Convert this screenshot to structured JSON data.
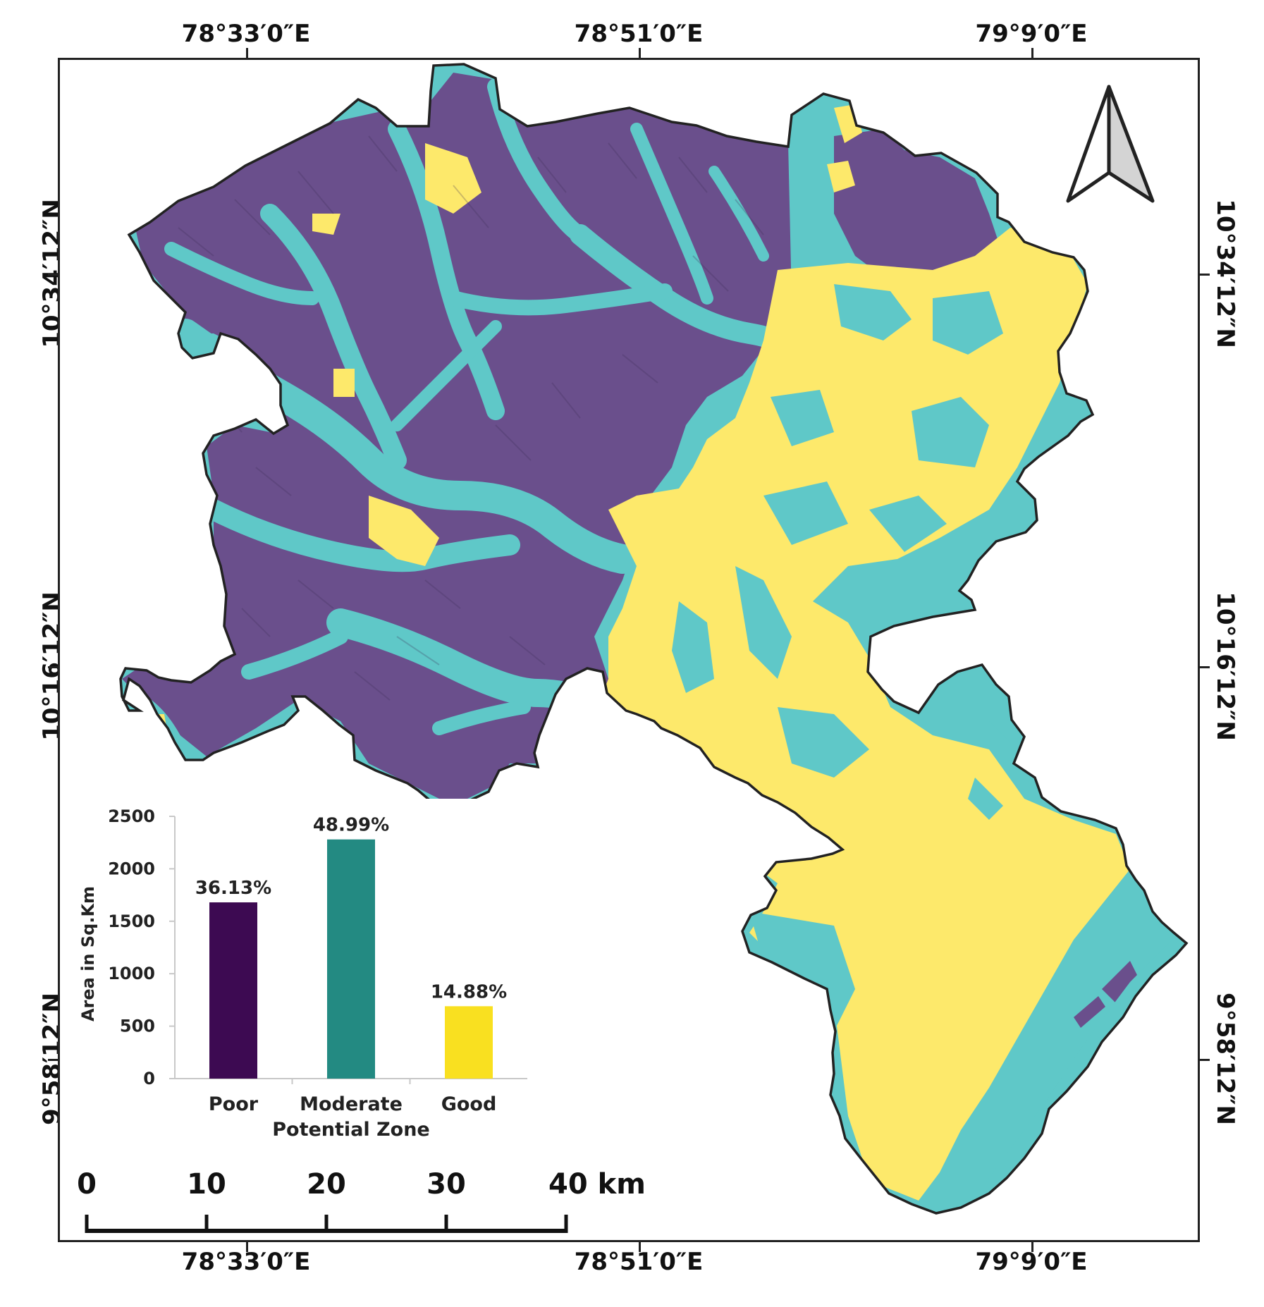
{
  "map": {
    "top_coords": [
      "78°33′0″E",
      "78°51′0″E",
      "79°9′0″E"
    ],
    "bottom_coords": [
      "78°33′0″E",
      "78°51′0″E",
      "79°9′0″E"
    ],
    "left_coords": [
      "10°34′12″N",
      "10°16′12″N",
      "9°58′12″N"
    ],
    "right_coords": [
      "10°34′12″N",
      "10°16′12″N",
      "9°58′12″N"
    ],
    "zone_colors": {
      "poor": "#6a4f8c",
      "moderate": "#5fc8c8",
      "good": "#fde96b"
    },
    "north_arrow_icon": "north-arrow-icon"
  },
  "scale_bar": {
    "labels": [
      "0",
      "10",
      "20",
      "30",
      "40 km"
    ]
  },
  "chart_data": {
    "type": "bar",
    "categories": [
      "Poor",
      "Moderate",
      "Good"
    ],
    "values": [
      1680,
      2280,
      690
    ],
    "data_labels": [
      "36.13%",
      "48.99%",
      "14.88%"
    ],
    "colors": [
      "#3d0a52",
      "#238a82",
      "#f9e020"
    ],
    "ylabel": "Area in Sq.Km",
    "xlabel": "Potential Zone",
    "y_ticks": [
      "0",
      "500",
      "1000",
      "1500",
      "2000",
      "2500"
    ],
    "ylim": [
      0,
      2500
    ]
  }
}
